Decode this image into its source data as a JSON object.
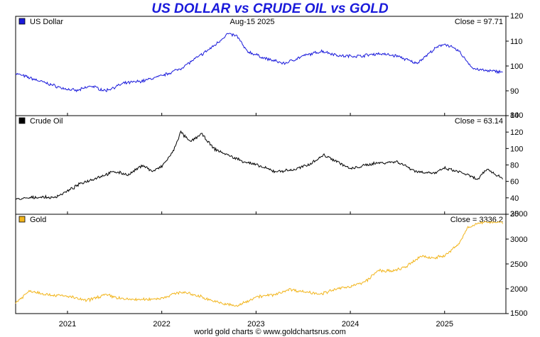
{
  "title": "US DOLLAR vs CRUDE OIL vs GOLD",
  "date_label": "Aug-15  2025",
  "footer": "world gold charts © www.goldchartsrus.com",
  "colors": {
    "usd": "#1a1adb",
    "oil": "#000000",
    "gold": "#f2b51c",
    "title": "#1a1adb"
  },
  "chart_data": [
    {
      "type": "line",
      "name": "US Dollar",
      "close_label": "Close = 97.71",
      "ylim": [
        80,
        120
      ],
      "yticks": [
        80,
        90,
        100,
        110,
        120
      ],
      "x": [
        2020.45,
        2020.7,
        2020.95,
        2021.1,
        2021.25,
        2021.4,
        2021.6,
        2021.8,
        2022.0,
        2022.2,
        2022.4,
        2022.55,
        2022.7,
        2022.8,
        2022.9,
        2023.1,
        2023.3,
        2023.5,
        2023.7,
        2023.9,
        2024.1,
        2024.3,
        2024.5,
        2024.7,
        2024.9,
        2025.0,
        2025.15,
        2025.3,
        2025.45,
        2025.62
      ],
      "values": [
        97,
        94,
        91,
        90,
        92,
        90,
        93,
        94,
        96,
        99,
        104,
        108,
        113,
        112,
        106,
        103,
        101,
        104,
        106,
        104,
        104,
        105,
        104,
        101,
        107,
        109,
        106,
        99,
        98,
        97.71
      ]
    },
    {
      "type": "line",
      "name": "Crude Oil",
      "close_label": "Close = 63.14",
      "ylim": [
        20,
        140
      ],
      "yticks": [
        20,
        40,
        60,
        80,
        100,
        120,
        140
      ],
      "x": [
        2020.45,
        2020.7,
        2020.85,
        2021.0,
        2021.15,
        2021.3,
        2021.5,
        2021.65,
        2021.8,
        2021.9,
        2022.0,
        2022.12,
        2022.2,
        2022.3,
        2022.42,
        2022.55,
        2022.7,
        2022.85,
        2023.0,
        2023.2,
        2023.4,
        2023.55,
        2023.72,
        2023.85,
        2024.0,
        2024.25,
        2024.5,
        2024.7,
        2024.9,
        2025.0,
        2025.2,
        2025.35,
        2025.45,
        2025.62
      ],
      "values": [
        38,
        41,
        40,
        48,
        58,
        64,
        72,
        68,
        80,
        72,
        78,
        96,
        120,
        108,
        118,
        100,
        92,
        85,
        80,
        72,
        74,
        80,
        92,
        85,
        75,
        82,
        84,
        72,
        70,
        76,
        70,
        62,
        75,
        63.14
      ]
    },
    {
      "type": "line",
      "name": "Gold",
      "close_label": "Close = 3336.2",
      "ylim": [
        1500,
        3500
      ],
      "yticks": [
        1500,
        2000,
        2500,
        3000,
        3500
      ],
      "x": [
        2020.45,
        2020.6,
        2020.8,
        2021.0,
        2021.2,
        2021.4,
        2021.6,
        2021.8,
        2022.0,
        2022.2,
        2022.4,
        2022.6,
        2022.8,
        2023.0,
        2023.2,
        2023.35,
        2023.5,
        2023.7,
        2023.85,
        2024.0,
        2024.15,
        2024.3,
        2024.45,
        2024.6,
        2024.75,
        2024.85,
        2025.0,
        2025.15,
        2025.25,
        2025.35,
        2025.45,
        2025.62
      ],
      "values": [
        1720,
        1960,
        1880,
        1850,
        1760,
        1880,
        1790,
        1780,
        1810,
        1940,
        1850,
        1720,
        1650,
        1840,
        1880,
        1990,
        1940,
        1900,
        1990,
        2050,
        2130,
        2370,
        2350,
        2450,
        2660,
        2620,
        2660,
        2900,
        3250,
        3300,
        3350,
        3336.2
      ]
    }
  ],
  "x_axis": {
    "ticks": [
      "2021",
      "2022",
      "2023",
      "2024",
      "2025"
    ],
    "tick_values": [
      2021,
      2022,
      2023,
      2024,
      2025
    ],
    "xlim": [
      2020.45,
      2025.65
    ]
  }
}
